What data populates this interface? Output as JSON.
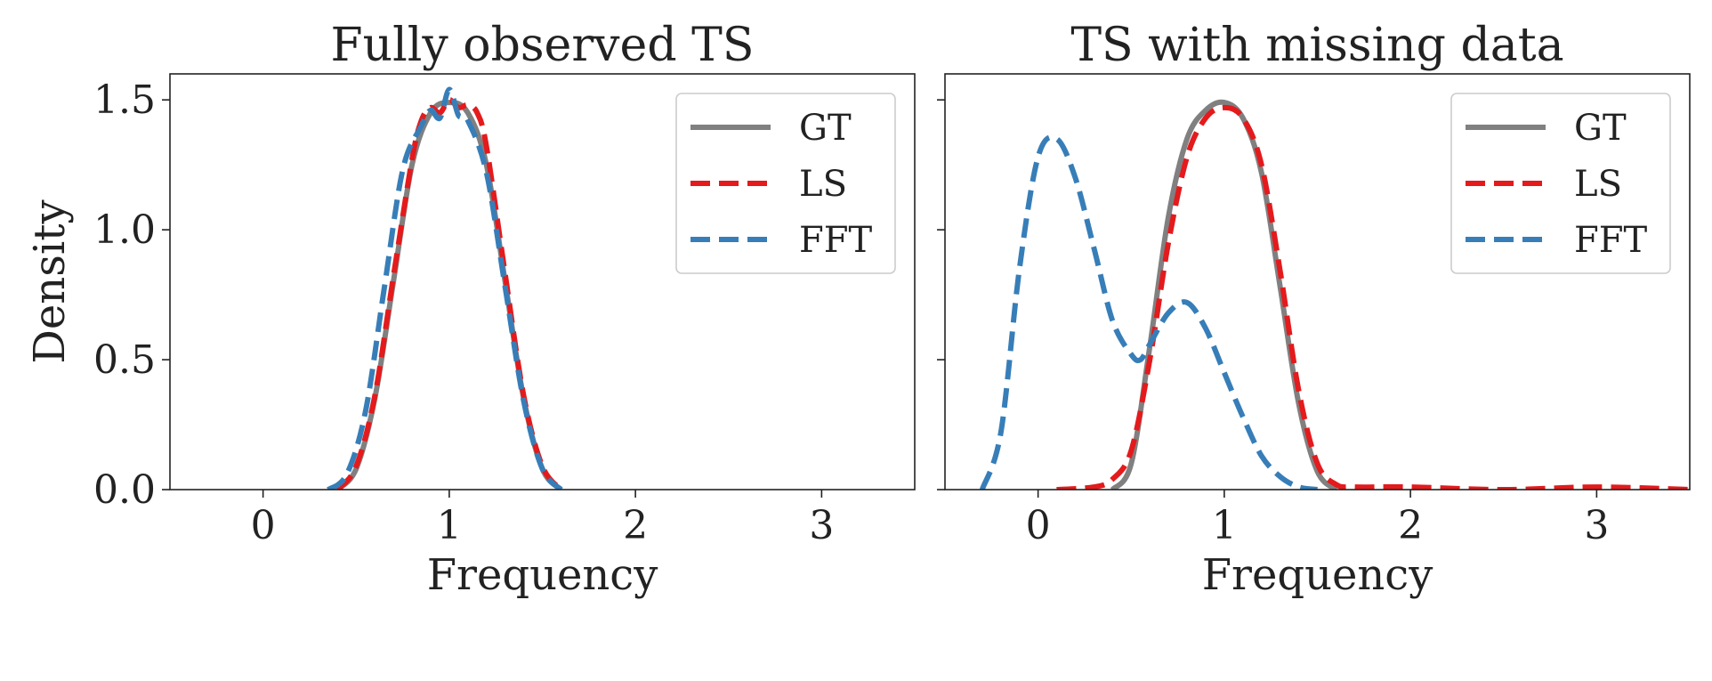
{
  "chart_data": [
    {
      "type": "line",
      "title": "Fully observed TS",
      "xlabel": "Frequency",
      "ylabel": "Density",
      "xlim": [
        -0.5,
        3.5
      ],
      "ylim": [
        0,
        1.6
      ],
      "xticks": [
        0,
        1,
        2,
        3
      ],
      "xtick_labels": [
        "0",
        "1",
        "2",
        "3"
      ],
      "yticks": [
        0.0,
        0.5,
        1.0,
        1.5
      ],
      "ytick_labels": [
        "0.0",
        "0.5",
        "1.0",
        "1.5"
      ],
      "grid": false,
      "legend_position": "top-right",
      "series": [
        {
          "name": "GT",
          "color": "#808080",
          "style": "solid",
          "x": [
            0.4,
            0.5,
            0.6,
            0.7,
            0.8,
            0.9,
            1.0,
            1.1,
            1.2,
            1.3,
            1.4,
            1.5,
            1.6
          ],
          "y": [
            0.0,
            0.08,
            0.35,
            0.8,
            1.25,
            1.45,
            1.49,
            1.45,
            1.25,
            0.8,
            0.35,
            0.08,
            0.0
          ]
        },
        {
          "name": "LS",
          "color": "#e41a1c",
          "style": "dashed",
          "x": [
            0.4,
            0.5,
            0.6,
            0.7,
            0.8,
            0.85,
            0.9,
            0.95,
            1.0,
            1.05,
            1.1,
            1.15,
            1.2,
            1.3,
            1.4,
            1.5,
            1.6
          ],
          "y": [
            0.0,
            0.09,
            0.36,
            0.82,
            1.27,
            1.42,
            1.47,
            1.45,
            1.5,
            1.47,
            1.48,
            1.45,
            1.32,
            0.83,
            0.36,
            0.09,
            0.0
          ]
        },
        {
          "name": "FFT",
          "color": "#377eb8",
          "style": "dashed",
          "x": [
            0.35,
            0.45,
            0.55,
            0.65,
            0.75,
            0.85,
            0.9,
            0.95,
            1.0,
            1.05,
            1.1,
            1.2,
            1.3,
            1.4,
            1.5,
            1.6
          ],
          "y": [
            0.0,
            0.06,
            0.3,
            0.77,
            1.23,
            1.4,
            1.46,
            1.43,
            1.54,
            1.44,
            1.42,
            1.22,
            0.78,
            0.34,
            0.08,
            0.0
          ]
        }
      ]
    },
    {
      "type": "line",
      "title": "TS with missing data",
      "xlabel": "Frequency",
      "ylabel": "",
      "xlim": [
        -0.5,
        3.5
      ],
      "ylim": [
        0,
        1.6
      ],
      "xticks": [
        0,
        1,
        2,
        3
      ],
      "xtick_labels": [
        "0",
        "1",
        "2",
        "3"
      ],
      "yticks": [
        0.0,
        0.5,
        1.0,
        1.5
      ],
      "ytick_labels": [],
      "grid": false,
      "legend_position": "top-right",
      "series": [
        {
          "name": "GT",
          "color": "#808080",
          "style": "solid",
          "x": [
            0.4,
            0.5,
            0.6,
            0.7,
            0.8,
            0.9,
            1.0,
            1.1,
            1.2,
            1.3,
            1.4,
            1.5,
            1.6
          ],
          "y": [
            0.0,
            0.1,
            0.55,
            1.05,
            1.35,
            1.46,
            1.49,
            1.43,
            1.22,
            0.78,
            0.33,
            0.07,
            0.0
          ]
        },
        {
          "name": "LS",
          "color": "#e41a1c",
          "style": "dashed",
          "x": [
            0.1,
            0.3,
            0.4,
            0.5,
            0.6,
            0.7,
            0.8,
            0.9,
            1.0,
            1.1,
            1.2,
            1.3,
            1.4,
            1.5,
            1.6,
            1.7,
            2.0,
            2.5,
            3.0,
            3.5
          ],
          "y": [
            0.0,
            0.01,
            0.04,
            0.15,
            0.5,
            0.95,
            1.28,
            1.43,
            1.47,
            1.43,
            1.25,
            0.84,
            0.38,
            0.1,
            0.02,
            0.01,
            0.01,
            0.0,
            0.01,
            0.0
          ]
        },
        {
          "name": "FFT",
          "color": "#377eb8",
          "style": "dashed",
          "x": [
            -0.3,
            -0.2,
            -0.1,
            0.0,
            0.1,
            0.2,
            0.3,
            0.4,
            0.5,
            0.55,
            0.6,
            0.7,
            0.8,
            0.9,
            1.0,
            1.1,
            1.2,
            1.3,
            1.4,
            1.5
          ],
          "y": [
            0.0,
            0.22,
            0.85,
            1.28,
            1.35,
            1.2,
            0.93,
            0.65,
            0.52,
            0.5,
            0.56,
            0.68,
            0.72,
            0.62,
            0.45,
            0.28,
            0.13,
            0.05,
            0.01,
            0.0
          ]
        }
      ]
    }
  ]
}
